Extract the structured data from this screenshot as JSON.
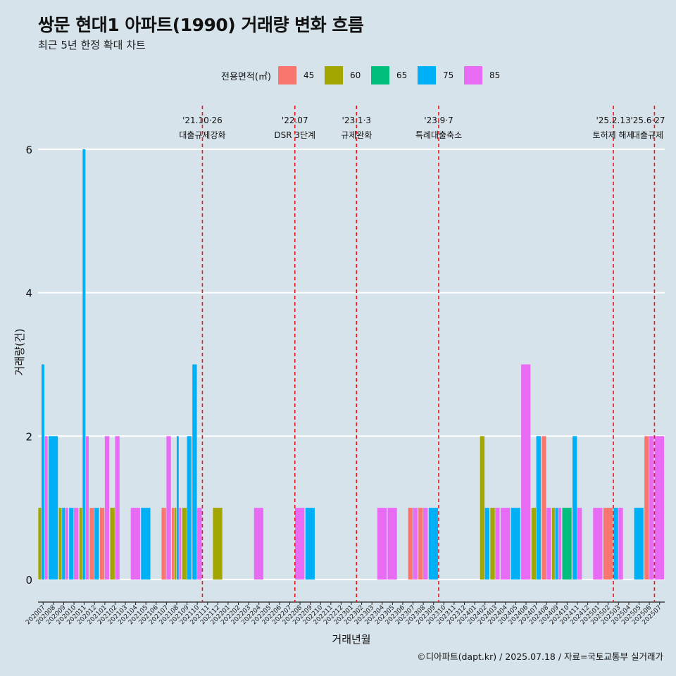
{
  "title": "쌍문 현대1 아파트(1990) 거래량 변화 흐름",
  "subtitle": "최근 5년 한정 확대 차트",
  "footer": "©디아파트(dapt.kr) / 2025.07.18 / 자료=국토교통부 실거래가",
  "colors": {
    "background": "#d6e3ea",
    "grid": "#ffffff",
    "event_line": "#e8191d"
  },
  "chart_data": {
    "type": "bar",
    "xlabel": "거래년월",
    "ylabel": "거래량(건)",
    "ylim": [
      0,
      6
    ],
    "yticks": [
      0,
      2,
      4,
      6
    ],
    "legend_title": "전용면적(㎡)",
    "legend_position": "top",
    "grid": true,
    "categories": [
      "202007",
      "202008",
      "202009",
      "202010",
      "202011",
      "202012",
      "202101",
      "202102",
      "202103",
      "202104",
      "202105",
      "202106",
      "202107",
      "202108",
      "202109",
      "202110",
      "202111",
      "202112",
      "202201",
      "202202",
      "202203",
      "202204",
      "202205",
      "202206",
      "202207",
      "202208",
      "202209",
      "202210",
      "202211",
      "202212",
      "202301",
      "202302",
      "202303",
      "202304",
      "202305",
      "202306",
      "202307",
      "202308",
      "202309",
      "202310",
      "202311",
      "202312",
      "202401",
      "202402",
      "202403",
      "202404",
      "202405",
      "202406",
      "202407",
      "202408",
      "202409",
      "202410",
      "202411",
      "202412",
      "202501",
      "202502",
      "202503",
      "202504",
      "202505",
      "202506",
      "202507"
    ],
    "series": [
      {
        "name": "45",
        "color": "#f8766d",
        "values": [
          0,
          0,
          0,
          0,
          0,
          1,
          1,
          0,
          0,
          0,
          0,
          0,
          1,
          1,
          0,
          0,
          0,
          0,
          0,
          0,
          0,
          0,
          0,
          0,
          0,
          0,
          0,
          0,
          0,
          0,
          0,
          0,
          0,
          0,
          0,
          0,
          1,
          1,
          0,
          0,
          0,
          0,
          0,
          0,
          0,
          0,
          0,
          0,
          0,
          2,
          0,
          0,
          0,
          0,
          0,
          1,
          0,
          0,
          0,
          2,
          0
        ]
      },
      {
        "name": "60",
        "color": "#a3a500",
        "values": [
          1,
          0,
          1,
          0,
          1,
          0,
          0,
          1,
          0,
          0,
          0,
          0,
          0,
          1,
          1,
          0,
          0,
          1,
          0,
          0,
          0,
          0,
          0,
          0,
          0,
          0,
          0,
          0,
          0,
          0,
          0,
          0,
          0,
          0,
          0,
          0,
          0,
          0,
          0,
          0,
          0,
          0,
          0,
          2,
          1,
          0,
          0,
          0,
          1,
          0,
          1,
          0,
          0,
          0,
          0,
          0,
          0,
          0,
          0,
          0,
          0
        ]
      },
      {
        "name": "65",
        "color": "#00bf7d",
        "values": [
          0,
          0,
          0,
          0,
          0,
          0,
          0,
          0,
          0,
          0,
          0,
          0,
          0,
          0,
          0,
          0,
          0,
          0,
          0,
          0,
          0,
          0,
          0,
          0,
          0,
          0,
          0,
          0,
          0,
          0,
          0,
          0,
          0,
          0,
          0,
          0,
          0,
          0,
          0,
          0,
          0,
          0,
          0,
          0,
          0,
          0,
          0,
          0,
          0,
          0,
          0,
          1,
          0,
          0,
          0,
          0,
          0,
          0,
          0,
          0,
          0
        ]
      },
      {
        "name": "75",
        "color": "#00b0f6",
        "values": [
          3,
          2,
          1,
          1,
          6,
          1,
          0,
          0,
          0,
          0,
          1,
          0,
          0,
          2,
          2,
          3,
          0,
          0,
          0,
          0,
          0,
          0,
          0,
          0,
          0,
          0,
          1,
          0,
          0,
          0,
          0,
          0,
          0,
          0,
          0,
          0,
          0,
          0,
          1,
          0,
          0,
          0,
          0,
          1,
          0,
          0,
          1,
          0,
          2,
          0,
          1,
          0,
          2,
          0,
          0,
          0,
          1,
          0,
          1,
          0,
          0
        ]
      },
      {
        "name": "85",
        "color": "#e76bf3",
        "values": [
          2,
          0,
          1,
          1,
          2,
          0,
          2,
          2,
          0,
          1,
          0,
          0,
          2,
          1,
          0,
          1,
          0,
          0,
          0,
          0,
          0,
          1,
          0,
          0,
          0,
          1,
          0,
          0,
          0,
          0,
          0,
          0,
          0,
          1,
          1,
          0,
          1,
          1,
          0,
          0,
          0,
          0,
          0,
          0,
          1,
          1,
          0,
          3,
          0,
          1,
          1,
          0,
          1,
          0,
          1,
          0,
          1,
          0,
          0,
          2,
          2
        ]
      }
    ],
    "events": [
      {
        "date": "'21.10·26",
        "label": "대출규제강화",
        "index": 15
      },
      {
        "date": "'22.07",
        "label": "DSR 3단계",
        "index": 24
      },
      {
        "date": "'23.1·3",
        "label": "규제완화",
        "index": 30
      },
      {
        "date": "'23.9·7",
        "label": "특례대출축소",
        "index": 38
      },
      {
        "date": "'25.2.13",
        "label": "토허제 해제",
        "index": 55
      },
      {
        "date": "'25.6·27",
        "label": "대출규제",
        "index": 59
      }
    ]
  }
}
